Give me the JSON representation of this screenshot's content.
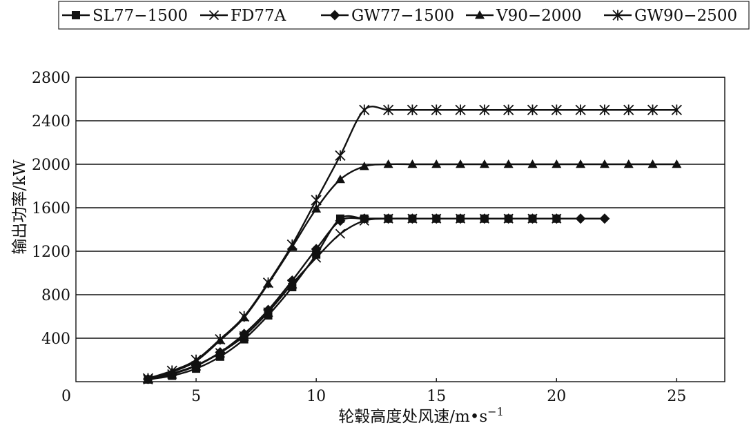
{
  "chart_data": {
    "type": "line",
    "title": "",
    "xlabel": "轮毂高度处风速/m•s",
    "xlabel_sup": "−1",
    "ylabel": "输出功率/kW",
    "xlim": [
      0,
      27
    ],
    "ylim": [
      0,
      2800
    ],
    "x_origin_label": "0",
    "xticks": [
      5,
      10,
      15,
      20,
      25
    ],
    "yticks": [
      400,
      800,
      1200,
      1600,
      2000,
      2400,
      2800
    ],
    "grid": true,
    "legend_position": "top",
    "series": [
      {
        "name": "SL77−1500",
        "marker": "square",
        "x": [
          3,
          4,
          5,
          6,
          7,
          8,
          9,
          10,
          11,
          12,
          13,
          14,
          15,
          16,
          17,
          18,
          19,
          20
        ],
        "y": [
          20,
          55,
          120,
          230,
          390,
          610,
          870,
          1170,
          1500,
          1500,
          1500,
          1500,
          1500,
          1500,
          1500,
          1500,
          1500,
          1500
        ]
      },
      {
        "name": "FD77A",
        "marker": "x",
        "x": [
          3,
          4,
          5,
          6,
          7,
          8,
          9,
          10,
          11,
          12,
          13,
          14,
          15,
          16,
          17,
          18,
          19,
          20
        ],
        "y": [
          20,
          70,
          145,
          265,
          420,
          640,
          900,
          1140,
          1360,
          1480,
          1500,
          1500,
          1500,
          1500,
          1500,
          1500,
          1500,
          1500
        ]
      },
      {
        "name": "GW77−1500",
        "marker": "diamond",
        "x": [
          3,
          4,
          5,
          6,
          7,
          8,
          9,
          10,
          11,
          12,
          13,
          14,
          15,
          16,
          17,
          18,
          19,
          20,
          21,
          22
        ],
        "y": [
          25,
          75,
          150,
          270,
          440,
          660,
          930,
          1220,
          1480,
          1500,
          1500,
          1500,
          1500,
          1500,
          1500,
          1500,
          1500,
          1500,
          1500,
          1500
        ]
      },
      {
        "name": "V90−2000",
        "marker": "triangle",
        "x": [
          3,
          4,
          5,
          6,
          7,
          8,
          9,
          10,
          11,
          12,
          13,
          14,
          15,
          16,
          17,
          18,
          19,
          20,
          21,
          22,
          23,
          24,
          25
        ],
        "y": [
          25,
          90,
          190,
          380,
          590,
          900,
          1240,
          1590,
          1860,
          1980,
          2000,
          2000,
          2000,
          2000,
          2000,
          2000,
          2000,
          2000,
          2000,
          2000,
          2000,
          2000,
          2000
        ]
      },
      {
        "name": "GW90−2500",
        "marker": "asterisk",
        "x": [
          3,
          4,
          5,
          6,
          7,
          8,
          9,
          10,
          11,
          12,
          13,
          14,
          15,
          16,
          17,
          18,
          19,
          20,
          21,
          22,
          23,
          24,
          25
        ],
        "y": [
          30,
          100,
          200,
          390,
          600,
          910,
          1260,
          1670,
          2080,
          2500,
          2500,
          2500,
          2500,
          2500,
          2500,
          2500,
          2500,
          2500,
          2500,
          2500,
          2500,
          2500,
          2500
        ]
      }
    ]
  }
}
